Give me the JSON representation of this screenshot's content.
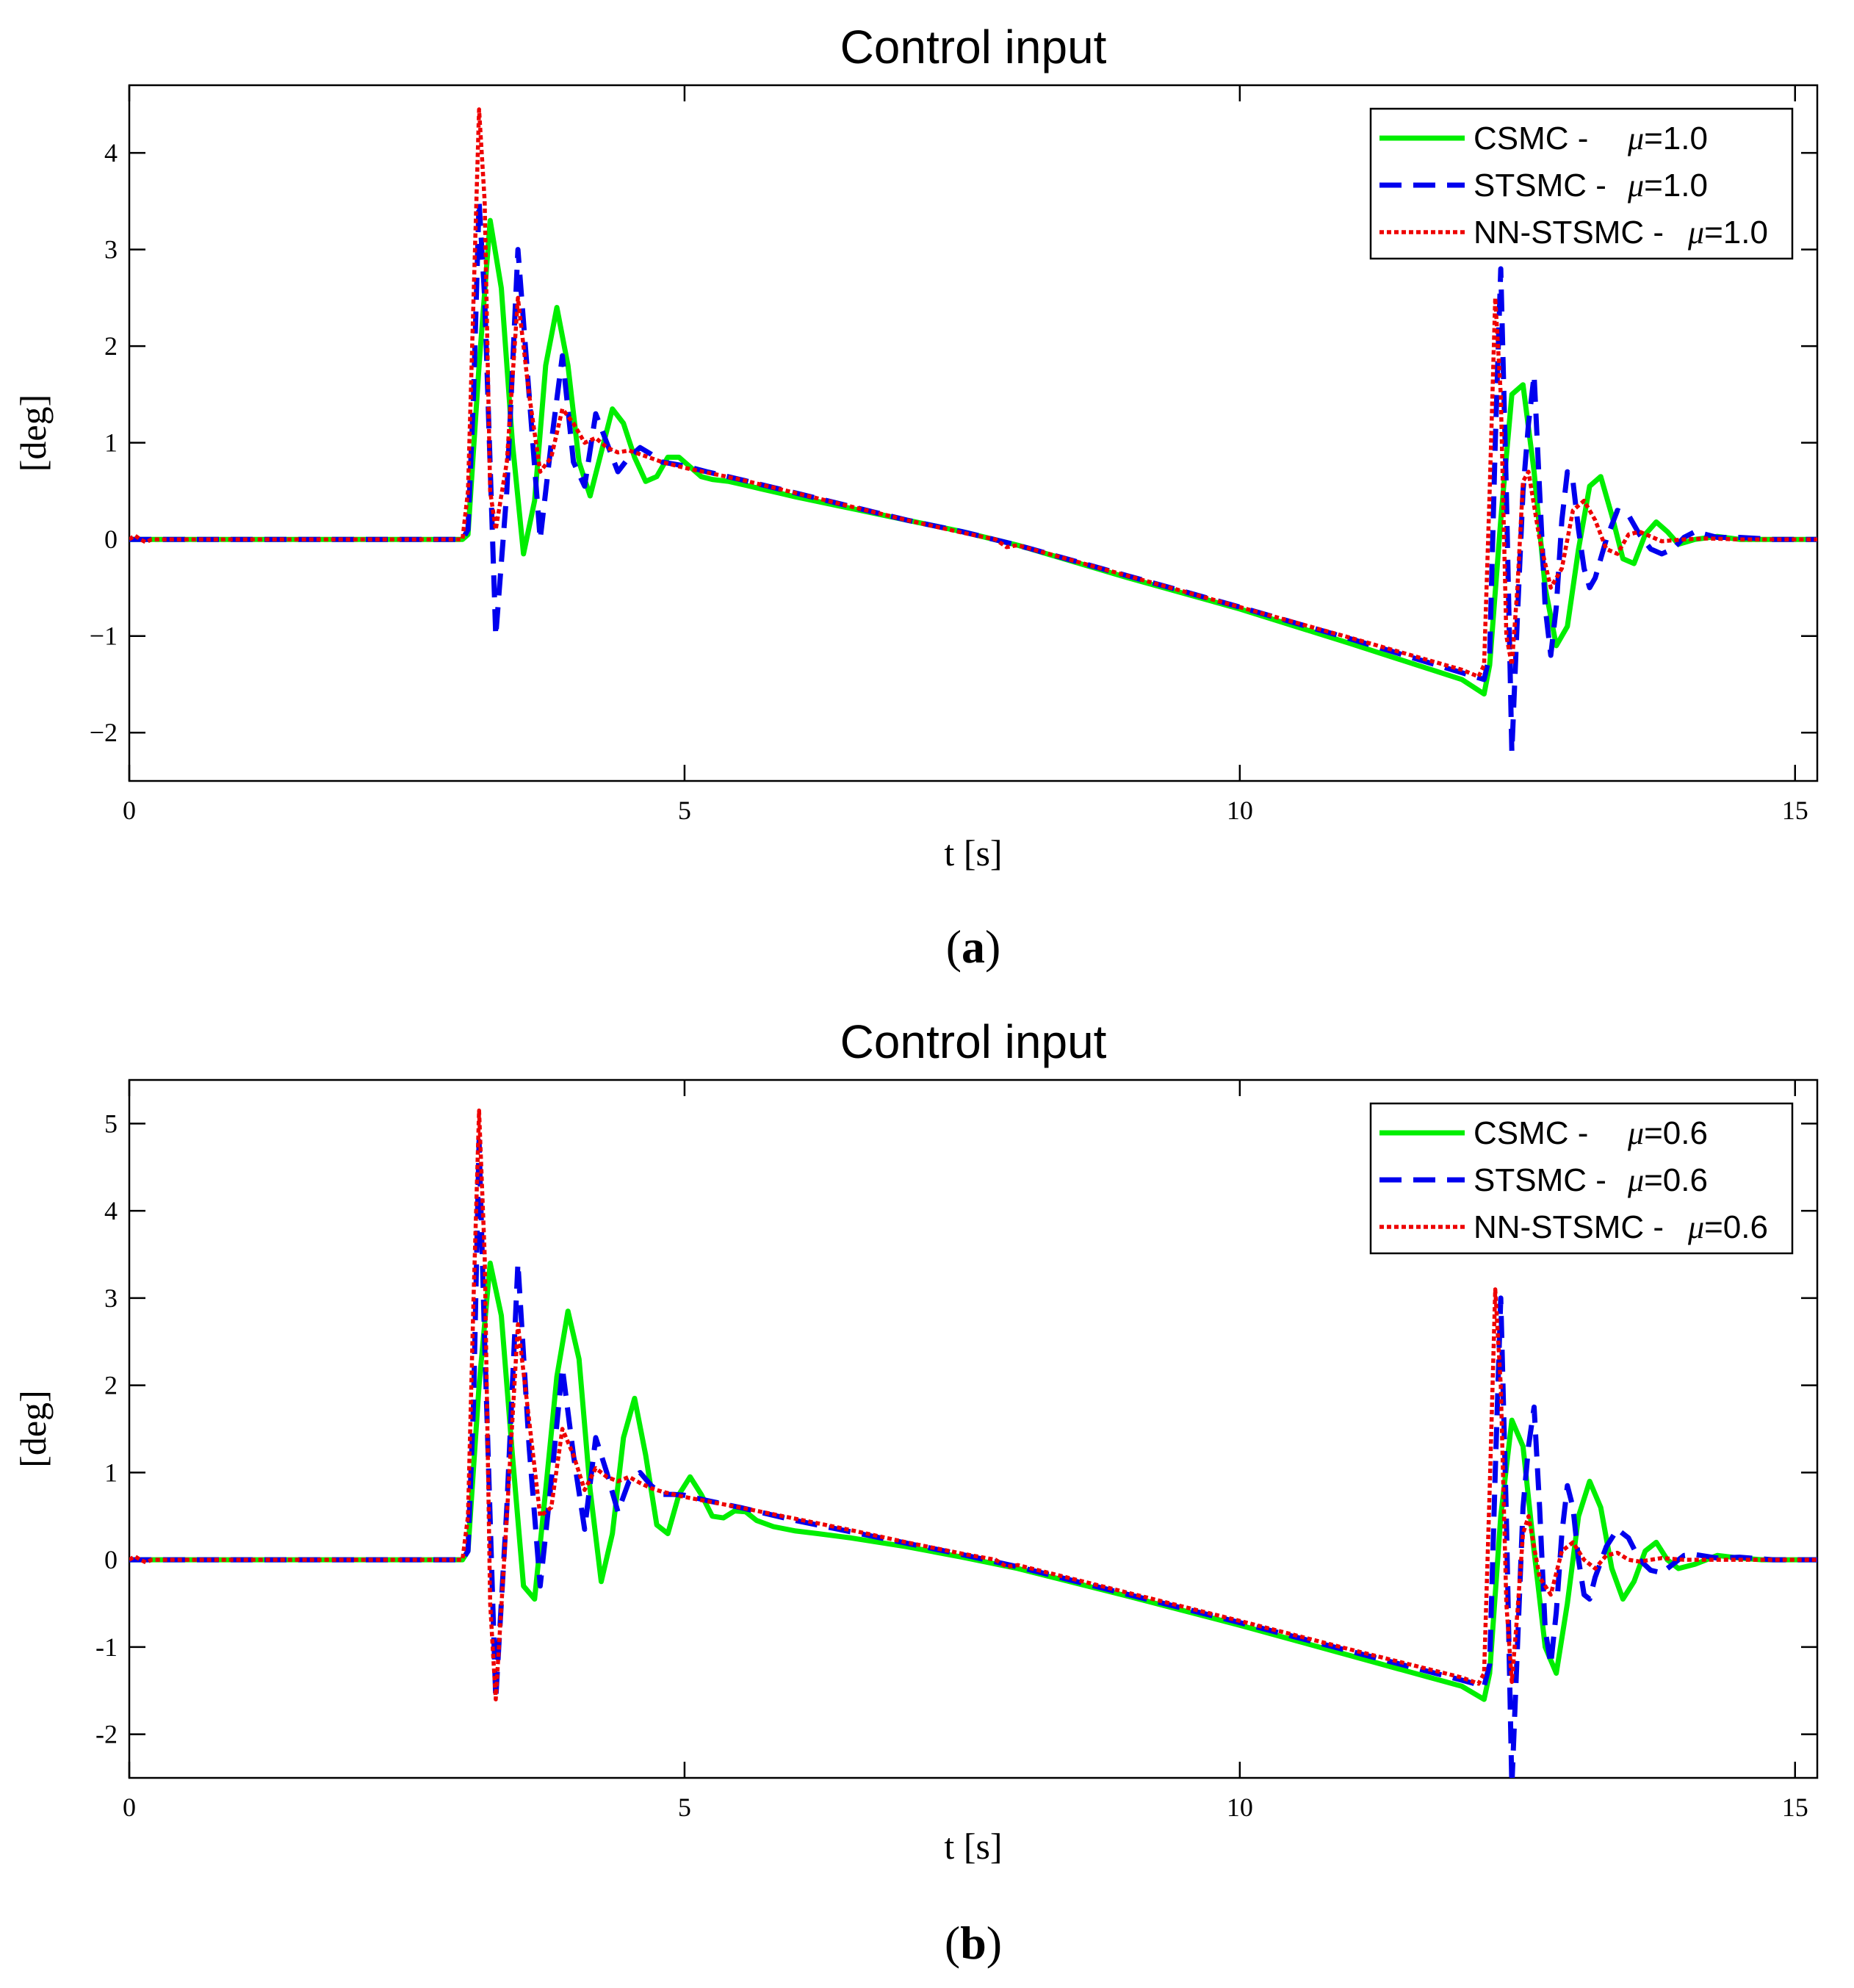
{
  "figure": {
    "colors": {
      "csmc": "#00ee00",
      "stsmc": "#0000ee",
      "nn": "#ee0000"
    }
  },
  "chart_data": [
    {
      "type": "line",
      "title": "Control input",
      "xlabel": "t [s]",
      "ylabel": "[deg]",
      "caption_letter": "a",
      "xlim": [
        0,
        15.2
      ],
      "ylim": [
        -2.5,
        4.7
      ],
      "xticks": [
        0,
        5,
        10,
        15
      ],
      "xtick_labels": [
        "0",
        "5",
        "10",
        "15"
      ],
      "yticks": [
        -2,
        -1,
        0,
        1,
        2,
        3,
        4
      ],
      "ytick_labels": [
        "−2",
        "−1",
        "0",
        "1",
        "2",
        "3",
        "4"
      ],
      "legend_position": "top-right",
      "series": [
        {
          "name": "CSMC",
          "label": "CSMC -",
          "mu_value": "=1.0",
          "style": "solid",
          "x": [
            0,
            3.0,
            3.05,
            3.15,
            3.25,
            3.35,
            3.45,
            3.55,
            3.65,
            3.75,
            3.85,
            3.95,
            4.05,
            4.15,
            4.25,
            4.35,
            4.45,
            4.55,
            4.65,
            4.75,
            4.85,
            4.95,
            5.05,
            5.15,
            5.25,
            5.4,
            5.55,
            5.7,
            5.85,
            6.0,
            6.5,
            7.0,
            7.5,
            8.0,
            9.0,
            10.0,
            11.0,
            12.0,
            12.2,
            12.25,
            12.35,
            12.45,
            12.55,
            12.65,
            12.75,
            12.85,
            12.95,
            13.05,
            13.15,
            13.25,
            13.35,
            13.45,
            13.55,
            13.65,
            13.75,
            13.85,
            13.95,
            14.1,
            14.3,
            14.5,
            14.7,
            15.2
          ],
          "values": [
            0,
            0,
            0.05,
            1.8,
            3.3,
            2.6,
            1.0,
            -0.15,
            0.4,
            1.8,
            2.4,
            1.8,
            0.8,
            0.45,
            0.9,
            1.35,
            1.2,
            0.85,
            0.6,
            0.65,
            0.85,
            0.85,
            0.75,
            0.65,
            0.62,
            0.6,
            0.56,
            0.52,
            0.48,
            0.44,
            0.32,
            0.2,
            0.08,
            -0.06,
            -0.4,
            -0.72,
            -1.08,
            -1.45,
            -1.6,
            -1.3,
            0.2,
            1.5,
            1.6,
            0.7,
            -0.5,
            -1.1,
            -0.9,
            -0.1,
            0.55,
            0.65,
            0.25,
            -0.2,
            -0.25,
            0.05,
            0.18,
            0.08,
            -0.05,
            0.0,
            0.03,
            0.0,
            0.0,
            0.0
          ]
        },
        {
          "name": "STSMC",
          "label": "STSMC -",
          "mu_value": "=1.0",
          "style": "dashed",
          "x": [
            0,
            3.0,
            3.05,
            3.1,
            3.15,
            3.2,
            3.3,
            3.4,
            3.5,
            3.6,
            3.7,
            3.8,
            3.9,
            4.0,
            4.1,
            4.2,
            4.3,
            4.4,
            4.5,
            4.6,
            4.7,
            4.8,
            4.9,
            5.0,
            5.2,
            5.5,
            6.0,
            6.5,
            7.0,
            7.5,
            8.0,
            9.0,
            10.0,
            11.0,
            12.0,
            12.2,
            12.25,
            12.3,
            12.35,
            12.4,
            12.45,
            12.5,
            12.55,
            12.6,
            12.65,
            12.7,
            12.75,
            12.8,
            12.85,
            12.9,
            12.95,
            13.0,
            13.05,
            13.1,
            13.15,
            13.2,
            13.3,
            13.4,
            13.5,
            13.6,
            13.7,
            13.8,
            13.9,
            14.0,
            14.1,
            14.3,
            14.5,
            14.8,
            15.2
          ],
          "values": [
            0,
            0,
            0.1,
            1.5,
            3.5,
            2.5,
            -1.0,
            0.5,
            3.0,
            1.5,
            0.0,
            1.0,
            1.9,
            0.8,
            0.55,
            1.3,
            1.0,
            0.7,
            0.85,
            0.95,
            0.88,
            0.8,
            0.78,
            0.76,
            0.7,
            0.62,
            0.48,
            0.34,
            0.2,
            0.08,
            -0.06,
            -0.38,
            -0.7,
            -1.03,
            -1.38,
            -1.45,
            -1.2,
            1.0,
            2.8,
            0.5,
            -2.2,
            -0.8,
            0.5,
            1.2,
            1.7,
            0.5,
            -0.7,
            -1.2,
            -0.7,
            0.2,
            0.7,
            0.6,
            0.1,
            -0.3,
            -0.5,
            -0.4,
            0.0,
            0.3,
            0.25,
            0.05,
            -0.1,
            -0.15,
            -0.1,
            0.02,
            0.08,
            0.02,
            0.02,
            0.0,
            0.0
          ]
        },
        {
          "name": "NN-STSMC",
          "label": "NN-STSMC -",
          "mu_value": "=1.0",
          "style": "dotted",
          "x": [
            0,
            0.05,
            0.1,
            0.15,
            0.2,
            0.3,
            3.0,
            3.05,
            3.1,
            3.15,
            3.2,
            3.25,
            3.3,
            3.4,
            3.5,
            3.6,
            3.7,
            3.8,
            3.9,
            4.0,
            4.1,
            4.2,
            4.3,
            4.4,
            4.5,
            4.6,
            4.7,
            4.8,
            4.9,
            5.0,
            5.5,
            6.0,
            6.5,
            7.0,
            7.5,
            7.8,
            7.9,
            8.0,
            9.0,
            10.0,
            11.0,
            12.0,
            12.15,
            12.2,
            12.25,
            12.3,
            12.35,
            12.4,
            12.45,
            12.5,
            12.55,
            12.6,
            12.7,
            12.8,
            12.9,
            13.0,
            13.1,
            13.2,
            13.3,
            13.4,
            13.5,
            13.6,
            13.8,
            14.0,
            14.2,
            14.5,
            15.2
          ],
          "values": [
            0,
            0.04,
            0.0,
            -0.03,
            0.0,
            0.0,
            0,
            0.5,
            2.5,
            4.45,
            3.5,
            0.5,
            0.1,
            0.8,
            2.5,
            1.5,
            0.7,
            0.85,
            1.35,
            1.2,
            1.0,
            1.05,
            0.95,
            0.9,
            0.92,
            0.88,
            0.84,
            0.8,
            0.77,
            0.74,
            0.62,
            0.48,
            0.34,
            0.2,
            0.07,
            0.0,
            -0.08,
            -0.06,
            -0.38,
            -0.7,
            -1.02,
            -1.35,
            -1.42,
            -1.3,
            0.5,
            2.5,
            1.5,
            -1.0,
            -1.3,
            -0.5,
            0.6,
            0.7,
            0.0,
            -0.5,
            -0.3,
            0.3,
            0.4,
            0.2,
            -0.1,
            -0.15,
            0.05,
            0.08,
            -0.02,
            0.0,
            0.01,
            0.0,
            0.0
          ]
        }
      ]
    },
    {
      "type": "line",
      "title": "Control input",
      "xlabel": "t [s]",
      "ylabel": "[deg]",
      "caption_letter": "b",
      "xlim": [
        0,
        15.2
      ],
      "ylim": [
        -2.5,
        5.5
      ],
      "xticks": [
        0,
        5,
        10,
        15
      ],
      "xtick_labels": [
        "0",
        "5",
        "10",
        "15"
      ],
      "yticks": [
        -2,
        -1,
        0,
        1,
        2,
        3,
        4,
        5
      ],
      "ytick_labels": [
        "-2",
        "-1",
        "0",
        "1",
        "2",
        "3",
        "4",
        "5"
      ],
      "legend_position": "top-right",
      "series": [
        {
          "name": "CSMC",
          "label": "CSMC -",
          "mu_value": "=0.6",
          "style": "solid",
          "x": [
            0,
            3.0,
            3.05,
            3.15,
            3.25,
            3.35,
            3.45,
            3.55,
            3.65,
            3.75,
            3.85,
            3.95,
            4.05,
            4.15,
            4.25,
            4.35,
            4.45,
            4.55,
            4.65,
            4.75,
            4.85,
            4.95,
            5.05,
            5.15,
            5.25,
            5.35,
            5.45,
            5.55,
            5.65,
            5.8,
            6.0,
            6.2,
            6.5,
            7.0,
            7.5,
            8.0,
            9.0,
            10.0,
            11.0,
            12.0,
            12.2,
            12.25,
            12.35,
            12.45,
            12.55,
            12.65,
            12.75,
            12.85,
            12.95,
            13.05,
            13.15,
            13.25,
            13.35,
            13.45,
            13.55,
            13.65,
            13.75,
            13.85,
            13.95,
            14.1,
            14.3,
            14.5,
            14.7,
            15.2
          ],
          "values": [
            0,
            0,
            0.1,
            2.0,
            3.4,
            2.8,
            1.2,
            -0.3,
            -0.45,
            0.8,
            2.1,
            2.85,
            2.3,
            0.8,
            -0.25,
            0.3,
            1.4,
            1.85,
            1.2,
            0.4,
            0.3,
            0.75,
            0.95,
            0.75,
            0.5,
            0.48,
            0.56,
            0.55,
            0.45,
            0.38,
            0.33,
            0.3,
            0.25,
            0.15,
            0.03,
            -0.1,
            -0.42,
            -0.75,
            -1.1,
            -1.45,
            -1.6,
            -1.3,
            0.5,
            1.6,
            1.3,
            0.1,
            -1.0,
            -1.3,
            -0.5,
            0.5,
            0.9,
            0.6,
            -0.1,
            -0.45,
            -0.25,
            0.1,
            0.2,
            0.0,
            -0.1,
            -0.05,
            0.05,
            0.02,
            0.0,
            0.0
          ]
        },
        {
          "name": "STSMC",
          "label": "STSMC -",
          "mu_value": "=0.6",
          "style": "dashed",
          "x": [
            0,
            3.0,
            3.05,
            3.1,
            3.15,
            3.2,
            3.3,
            3.4,
            3.5,
            3.6,
            3.7,
            3.8,
            3.9,
            4.0,
            4.1,
            4.2,
            4.3,
            4.4,
            4.5,
            4.6,
            4.7,
            4.8,
            4.9,
            5.0,
            5.2,
            5.5,
            6.0,
            6.5,
            7.0,
            7.5,
            8.0,
            9.0,
            10.0,
            11.0,
            12.0,
            12.2,
            12.25,
            12.3,
            12.35,
            12.4,
            12.45,
            12.5,
            12.55,
            12.6,
            12.65,
            12.7,
            12.75,
            12.8,
            12.85,
            12.9,
            12.95,
            13.0,
            13.05,
            13.1,
            13.15,
            13.2,
            13.3,
            13.4,
            13.5,
            13.6,
            13.7,
            13.8,
            13.9,
            14.0,
            14.1,
            14.3,
            14.5,
            14.8,
            15.2
          ],
          "values": [
            0,
            0,
            0.1,
            1.8,
            4.8,
            2.5,
            -1.6,
            0.6,
            3.4,
            1.3,
            -0.3,
            0.9,
            2.2,
            1.2,
            0.35,
            1.4,
            1.0,
            0.55,
            0.9,
            1.0,
            0.85,
            0.75,
            0.75,
            0.74,
            0.68,
            0.6,
            0.45,
            0.32,
            0.19,
            0.06,
            -0.08,
            -0.4,
            -0.72,
            -1.05,
            -1.38,
            -1.45,
            -1.2,
            1.0,
            3.0,
            0.5,
            -2.6,
            -1.0,
            0.6,
            1.3,
            1.75,
            0.6,
            -0.8,
            -1.2,
            -0.6,
            0.3,
            0.85,
            0.6,
            0.0,
            -0.4,
            -0.45,
            -0.2,
            0.15,
            0.35,
            0.25,
            0.0,
            -0.12,
            -0.15,
            -0.05,
            0.05,
            0.06,
            0.02,
            0.03,
            0.0,
            0.0
          ]
        },
        {
          "name": "NN-STSMC",
          "label": "NN-STSMC -",
          "mu_value": "=0.6",
          "style": "dotted",
          "x": [
            0,
            0.05,
            0.1,
            0.15,
            0.2,
            0.3,
            3.0,
            3.05,
            3.1,
            3.15,
            3.2,
            3.25,
            3.3,
            3.4,
            3.5,
            3.6,
            3.7,
            3.8,
            3.9,
            4.0,
            4.1,
            4.2,
            4.3,
            4.4,
            4.5,
            4.6,
            4.7,
            4.8,
            4.9,
            5.0,
            5.5,
            6.0,
            6.5,
            7.0,
            7.5,
            7.8,
            7.9,
            8.0,
            9.0,
            10.0,
            11.0,
            12.0,
            12.15,
            12.2,
            12.25,
            12.3,
            12.35,
            12.4,
            12.45,
            12.5,
            12.55,
            12.6,
            12.7,
            12.8,
            12.9,
            13.0,
            13.1,
            13.2,
            13.3,
            13.4,
            13.5,
            13.6,
            13.8,
            14.0,
            14.2,
            14.5,
            15.2
          ],
          "values": [
            0,
            0.04,
            0.0,
            -0.03,
            0.0,
            0.0,
            0,
            0.5,
            3.0,
            5.15,
            3.5,
            -0.5,
            -1.6,
            0.5,
            2.7,
            1.6,
            0.5,
            0.6,
            1.5,
            1.2,
            0.8,
            1.05,
            0.95,
            0.9,
            0.95,
            0.88,
            0.82,
            0.78,
            0.75,
            0.72,
            0.6,
            0.47,
            0.34,
            0.2,
            0.07,
            0.0,
            -0.08,
            -0.06,
            -0.38,
            -0.7,
            -1.03,
            -1.35,
            -1.42,
            -1.3,
            0.8,
            3.1,
            2.0,
            -0.5,
            -1.4,
            -0.6,
            0.3,
            0.5,
            -0.2,
            -0.4,
            0.1,
            0.2,
            0.0,
            -0.1,
            0.05,
            0.08,
            0.0,
            -0.02,
            0.02,
            0.0,
            0.0,
            0.0,
            0.0
          ]
        }
      ]
    }
  ]
}
